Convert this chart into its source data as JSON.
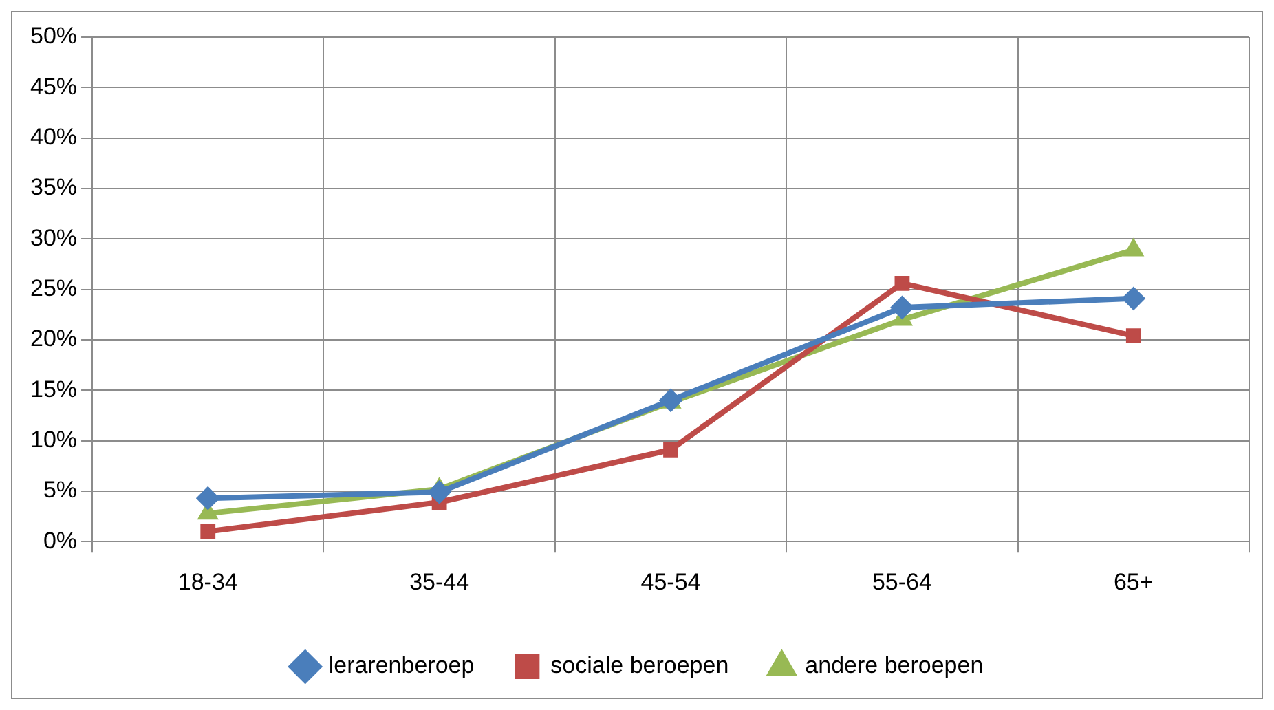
{
  "chart_data": {
    "type": "line",
    "categories": [
      "18-34",
      "35-44",
      "45-54",
      "55-64",
      "65+"
    ],
    "series": [
      {
        "name": "lerarenberoep",
        "color": "#4a7ebb",
        "marker": "diamond",
        "values": [
          4.3,
          4.9,
          14.0,
          23.2,
          24.1
        ]
      },
      {
        "name": "sociale beroepen",
        "color": "#be4b48",
        "marker": "square",
        "values": [
          1.0,
          3.9,
          9.1,
          25.6,
          20.4
        ]
      },
      {
        "name": "andere beroepen",
        "color": "#98b954",
        "marker": "triangle",
        "values": [
          2.8,
          5.2,
          13.8,
          22.0,
          28.9
        ]
      }
    ],
    "ylim": [
      0,
      50
    ],
    "yticks": [
      {
        "value": 0,
        "label": "0%"
      },
      {
        "value": 5,
        "label": "5%"
      },
      {
        "value": 10,
        "label": "10%"
      },
      {
        "value": 15,
        "label": "15%"
      },
      {
        "value": 20,
        "label": "20%"
      },
      {
        "value": 25,
        "label": "25%"
      },
      {
        "value": 30,
        "label": "30%"
      },
      {
        "value": 35,
        "label": "35%"
      },
      {
        "value": 40,
        "label": "40%"
      },
      {
        "value": 45,
        "label": "45%"
      },
      {
        "value": 50,
        "label": "50%"
      }
    ],
    "grid": true,
    "legend": "bottom",
    "line_style": "solid"
  }
}
